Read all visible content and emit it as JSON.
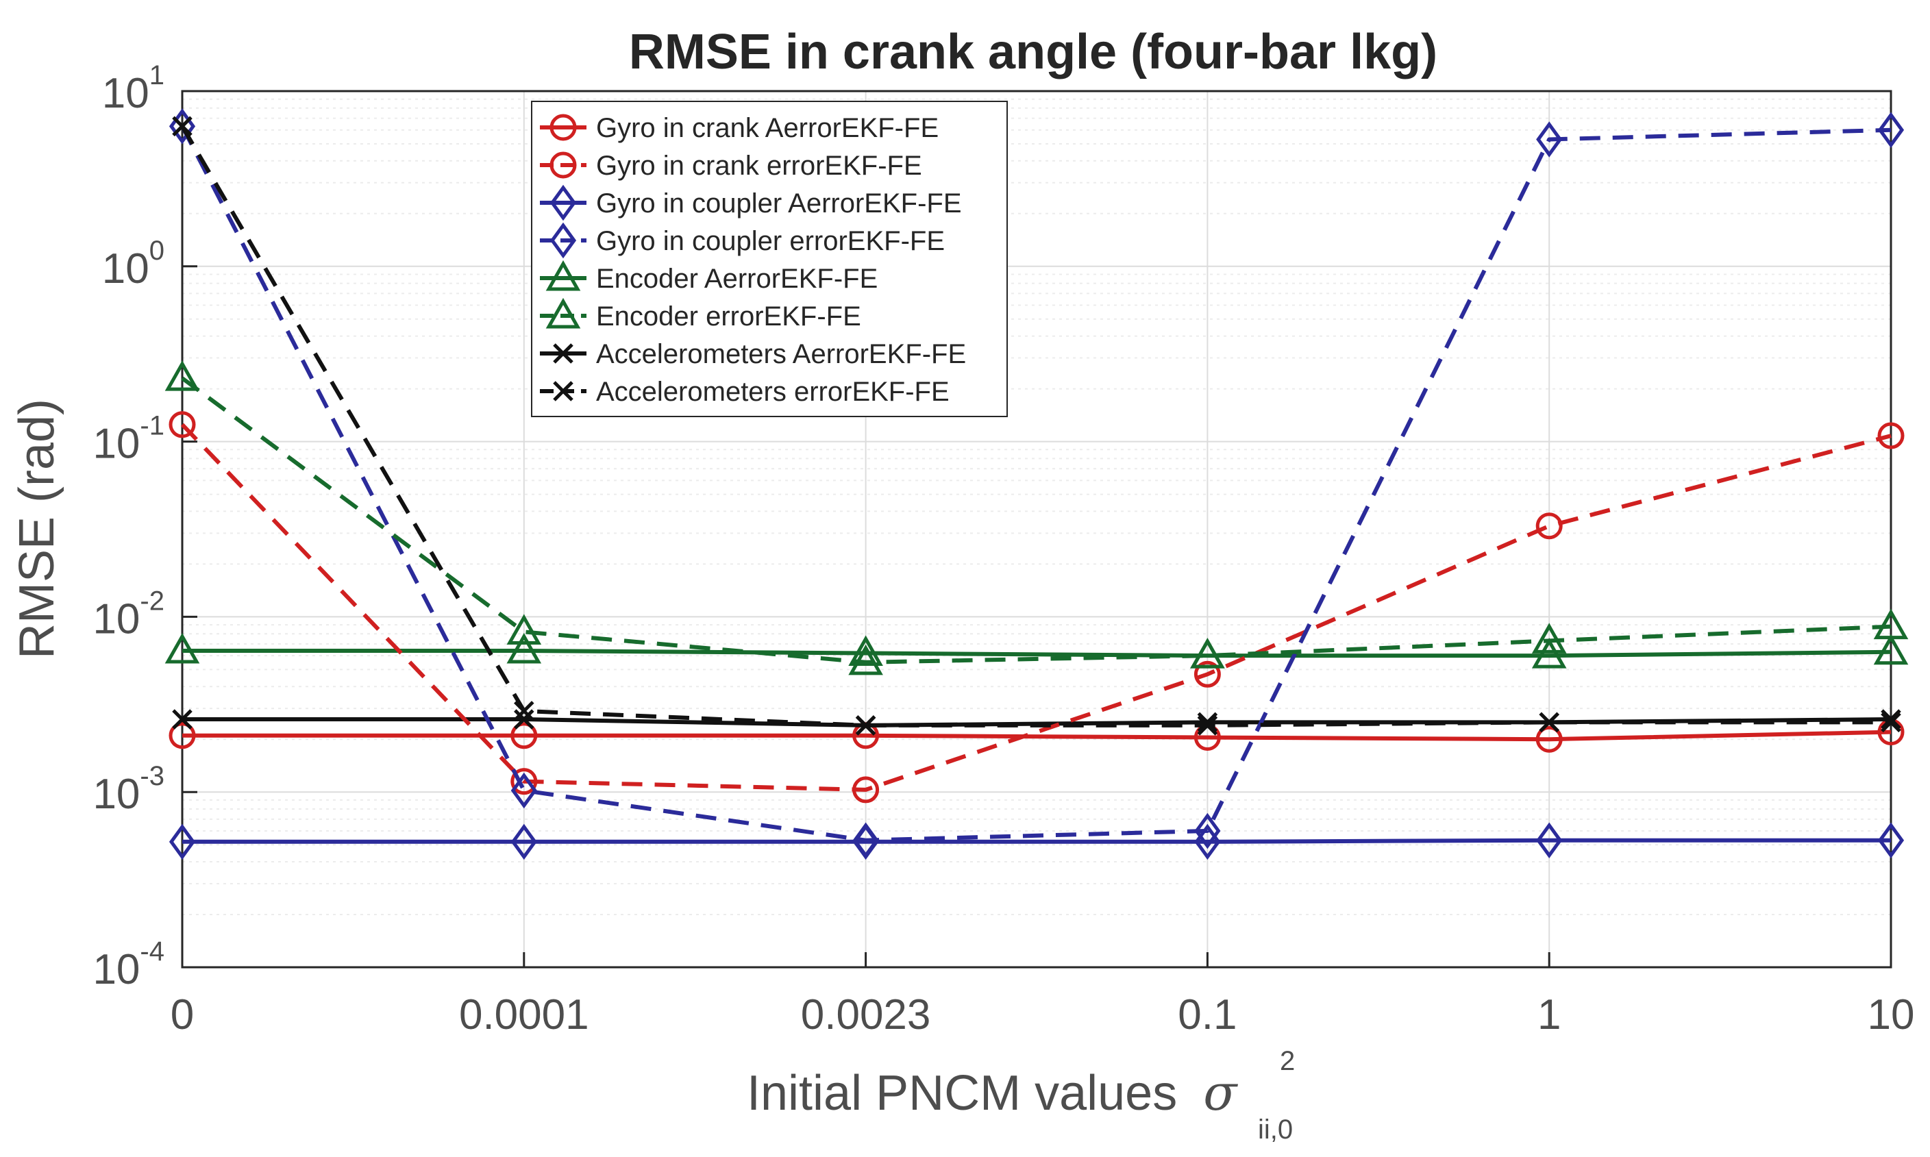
{
  "chart_data": {
    "type": "line",
    "title": "RMSE in crank angle (four-bar lkg)",
    "xlabel": "Initial PNCM values",
    "xlabel_symbol": "σ",
    "xlabel_superscript": "2",
    "xlabel_subscript": "ii,0",
    "ylabel": "RMSE (rad)",
    "yscale": "log",
    "ylim": [
      0.0001,
      10
    ],
    "categories": [
      "0",
      "0.0001",
      "0.0023",
      "0.1",
      "1",
      "10"
    ],
    "y_ticks": [
      {
        "base": "10",
        "exp": "1",
        "value": 10
      },
      {
        "base": "10",
        "exp": "0",
        "value": 1
      },
      {
        "base": "10",
        "exp": "-1",
        "value": 0.1
      },
      {
        "base": "10",
        "exp": "-2",
        "value": 0.01
      },
      {
        "base": "10",
        "exp": "-3",
        "value": 0.001
      },
      {
        "base": "10",
        "exp": "-4",
        "value": 0.0001
      }
    ],
    "grid": true,
    "legend_position": "top-center",
    "series": [
      {
        "name": "Gyro in crank AerrorEKF-FE",
        "color": "#d02020",
        "dash": "solid",
        "marker": "circle",
        "values": [
          0.0021,
          0.0021,
          0.0021,
          0.00205,
          0.002,
          0.0022
        ]
      },
      {
        "name": "Gyro in crank errorEKF-FE",
        "color": "#d02020",
        "dash": "dashed",
        "marker": "circle",
        "values": [
          0.125,
          0.00115,
          0.00103,
          0.0047,
          0.033,
          0.108
        ]
      },
      {
        "name": "Gyro in coupler AerrorEKF-FE",
        "color": "#2b2b9a",
        "dash": "solid",
        "marker": "diamond",
        "values": [
          0.00052,
          0.00052,
          0.00052,
          0.00052,
          0.00053,
          0.00053
        ]
      },
      {
        "name": "Gyro in coupler errorEKF-FE",
        "color": "#2b2b9a",
        "dash": "dashed",
        "marker": "diamond",
        "values": [
          6.3,
          0.00102,
          0.00053,
          0.0006,
          5.3,
          6.0
        ]
      },
      {
        "name": "Encoder AerrorEKF-FE",
        "color": "#176b2d",
        "dash": "solid",
        "marker": "triangle",
        "values": [
          0.0064,
          0.0064,
          0.0062,
          0.006,
          0.006,
          0.0063
        ]
      },
      {
        "name": "Encoder errorEKF-FE",
        "color": "#176b2d",
        "dash": "dashed",
        "marker": "triangle",
        "values": [
          0.23,
          0.0082,
          0.0055,
          0.006,
          0.0073,
          0.0088
        ]
      },
      {
        "name": "Accelerometers AerrorEKF-FE",
        "color": "#111111",
        "dash": "solid",
        "marker": "x",
        "values": [
          0.0026,
          0.0026,
          0.0024,
          0.0025,
          0.0025,
          0.0026
        ]
      },
      {
        "name": "Accelerometers errorEKF-FE",
        "color": "#111111",
        "dash": "dashed",
        "marker": "x",
        "values": [
          6.3,
          0.0029,
          0.0024,
          0.0024,
          0.0025,
          0.0025
        ]
      }
    ]
  }
}
